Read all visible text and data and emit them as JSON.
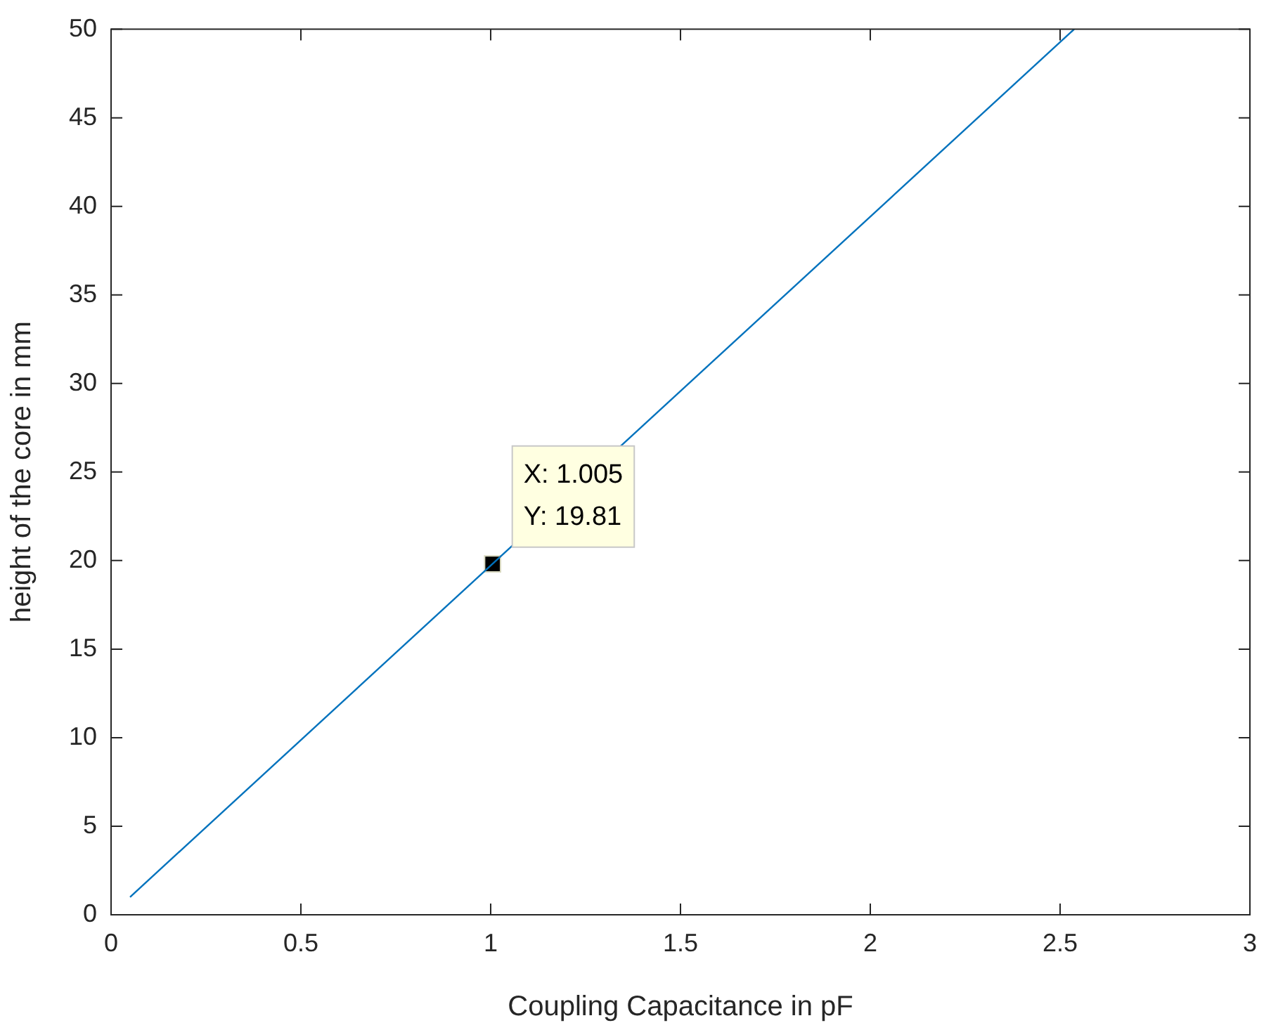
{
  "chart_data": {
    "type": "line",
    "xlabel": "Coupling Capacitance in pF",
    "ylabel": "height of the core in mm",
    "xlim": [
      0,
      3
    ],
    "xticks": [
      0,
      0.5,
      1,
      1.5,
      2,
      2.5,
      3
    ],
    "ylim": [
      0,
      50
    ],
    "yticks": [
      0,
      5,
      10,
      15,
      20,
      25,
      30,
      35,
      40,
      45,
      50
    ],
    "grid": false,
    "legend": false,
    "series": [
      {
        "color": "#0072bd",
        "marker": "none",
        "x": [
          0.05,
          2.537
        ],
        "values": [
          1,
          50
        ]
      },
      {
        "type": "scatter",
        "color": "#000000",
        "marker": "square",
        "x": [
          1.005
        ],
        "values": [
          19.81
        ]
      }
    ],
    "annotations": [
      {
        "text": "X: 1.005\nY: 19.81",
        "x": 1.005,
        "y": 19.81
      }
    ]
  }
}
